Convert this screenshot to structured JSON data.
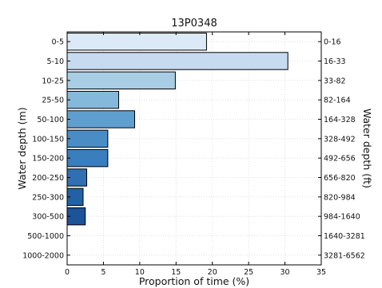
{
  "chart_data": {
    "type": "bar",
    "orientation": "horizontal",
    "title": "13P0348",
    "xlabel": "Proportion of time (%)",
    "ylabel": "Water depth (m)",
    "ylabel_right": "Water depth (ft)",
    "xlim": [
      0,
      35
    ],
    "xticks": [
      0,
      5,
      10,
      15,
      20,
      25,
      30,
      35
    ],
    "grid": true,
    "categories": [
      "0-5",
      "5-10",
      "10-25",
      "25-50",
      "50-100",
      "100-150",
      "150-200",
      "200-250",
      "250-300",
      "300-500",
      "500-1000",
      "1000-2000"
    ],
    "categories_right": [
      "0-16",
      "16-33",
      "33-82",
      "82-164",
      "164-328",
      "328-492",
      "492-656",
      "656-820",
      "820-984",
      "984-1640",
      "1640-3281",
      "3281-6562"
    ],
    "values": [
      19.2,
      30.4,
      14.9,
      7.1,
      9.3,
      5.6,
      5.6,
      2.7,
      2.2,
      2.5,
      0,
      0
    ],
    "colors": [
      "#dce9f7",
      "#c6dbef",
      "#a9cde4",
      "#84b9db",
      "#5f9fd0",
      "#4a8dc5",
      "#3a7ebd",
      "#2f6fb2",
      "#2361a6",
      "#1c5399",
      "#174a8e",
      "#124184"
    ]
  }
}
